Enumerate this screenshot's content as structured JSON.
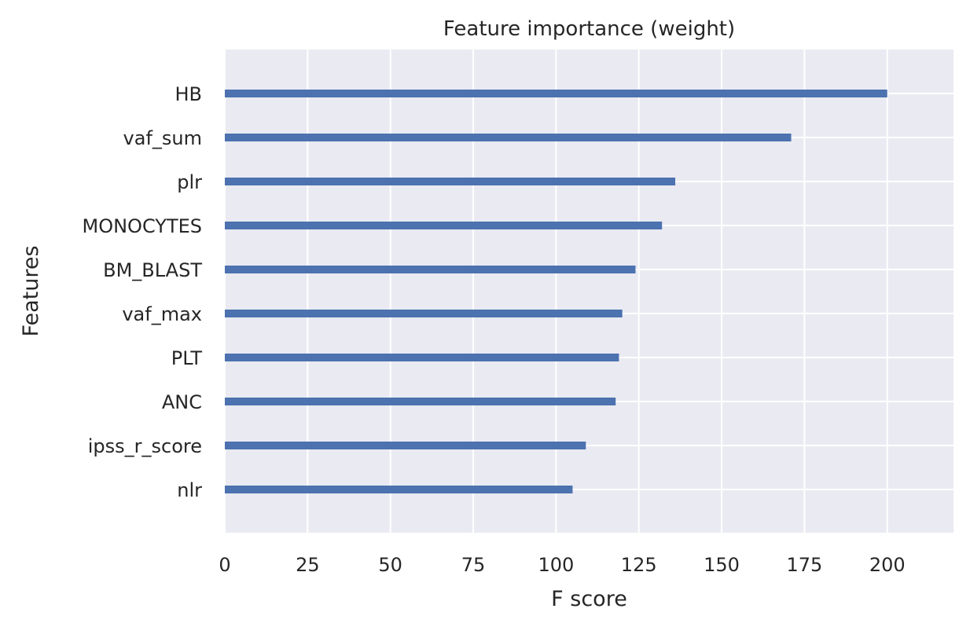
{
  "chart_data": {
    "type": "bar",
    "orientation": "horizontal",
    "title": "Feature importance (weight)",
    "xlabel": "F score",
    "ylabel": "Features",
    "categories": [
      "HB",
      "vaf_sum",
      "plr",
      "MONOCYTES",
      "BM_BLAST",
      "vaf_max",
      "PLT",
      "ANC",
      "ipss_r_score",
      "nlr"
    ],
    "values": [
      200,
      171,
      136,
      132,
      124,
      120,
      119,
      118,
      109,
      105
    ],
    "xlim": [
      0,
      220
    ],
    "xticks": [
      0,
      25,
      50,
      75,
      100,
      125,
      150,
      175,
      200
    ],
    "grid": true,
    "colors": {
      "background": "#EAEAF2",
      "bar": "#4C72B0",
      "grid": "#FFFFFF",
      "text": "#262626"
    }
  }
}
